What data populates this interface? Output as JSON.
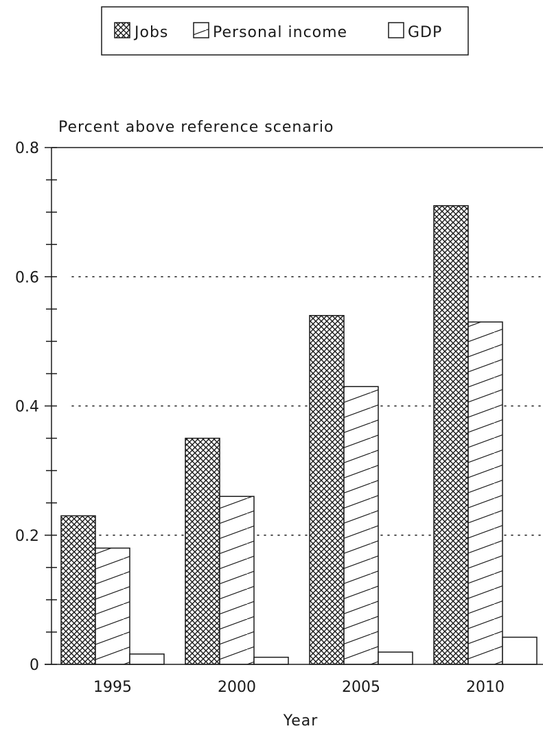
{
  "chart_data": {
    "type": "bar",
    "categories": [
      "1995",
      "2000",
      "2005",
      "2010"
    ],
    "series": [
      {
        "name": "Jobs",
        "values": [
          0.23,
          0.35,
          0.54,
          0.71
        ]
      },
      {
        "name": "Personal income",
        "values": [
          0.18,
          0.26,
          0.43,
          0.53
        ]
      },
      {
        "name": "GDP",
        "values": [
          0.016,
          0.011,
          0.019,
          0.042
        ]
      }
    ],
    "title": "",
    "ylabel": "Percent above reference scenario",
    "xlabel": "Year",
    "ylim": [
      0,
      0.8
    ],
    "yticks": [
      "0",
      "0.2",
      "0.4",
      "0.6",
      "0.8"
    ],
    "grid": "horizontal dotted",
    "legend_position": "top-center",
    "colors": {
      "ink": "#1a1a1a",
      "background": "#ffffff"
    }
  }
}
